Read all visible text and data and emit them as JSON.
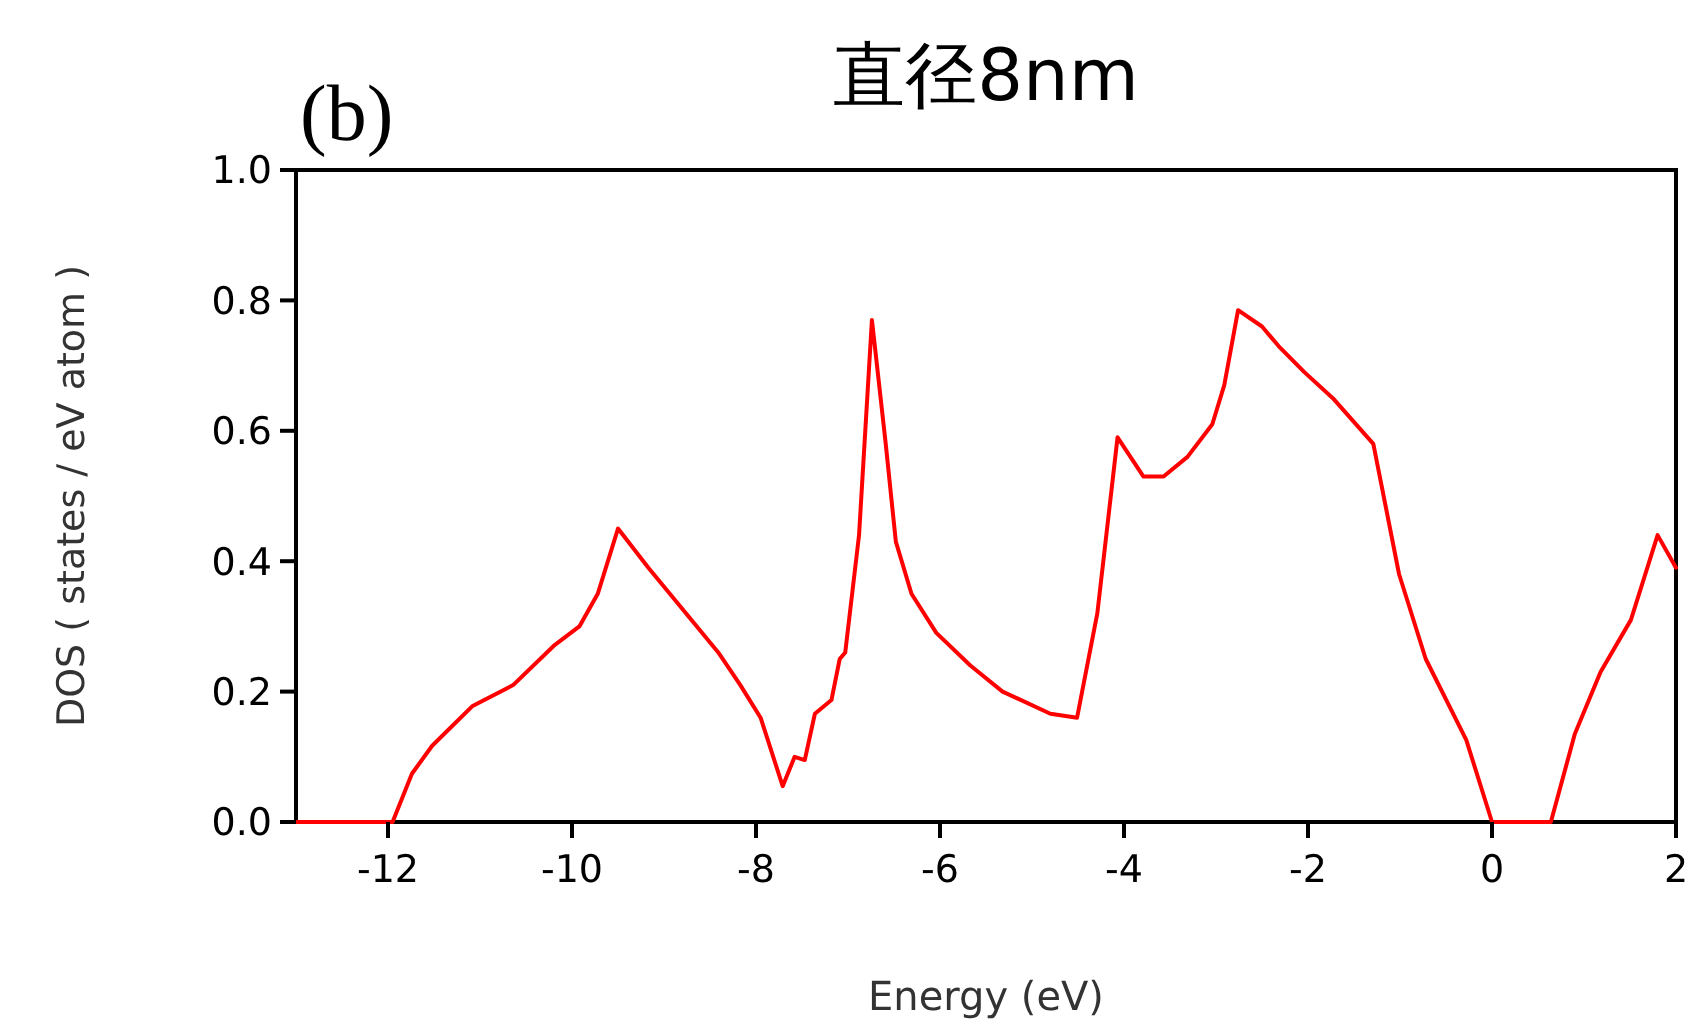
{
  "chart_data": {
    "type": "line",
    "title": "直径8nm",
    "xlabel": "Energy (eV)",
    "ylabel": "DOS ( states / eV atom )",
    "annotations": [
      "(b)"
    ],
    "xlim": [
      -13,
      2
    ],
    "xticks": [
      -12,
      -10,
      -8,
      -6,
      -4,
      -2,
      0,
      2
    ],
    "ylim": [
      0,
      1
    ],
    "yticks": [
      {
        "value": 0,
        "label": "0.0"
      },
      {
        "value": 0.2,
        "label": "0.2"
      },
      {
        "value": 0.4,
        "label": "0.4"
      },
      {
        "value": 0.6,
        "label": "0.6"
      },
      {
        "value": 0.8,
        "label": "0.8"
      },
      {
        "value": 1,
        "label": "1.0"
      }
    ],
    "grid": false,
    "marker": "none",
    "line_style": "solid",
    "series": [
      {
        "color": "#ff0000",
        "x": [
          -13,
          -11.95,
          -11.74,
          -11.52,
          -11.08,
          -10.64,
          -10.2,
          -9.92,
          -9.72,
          -9.5,
          -9.17,
          -8.82,
          -8.41,
          -8.17,
          -7.95,
          -7.71,
          -7.58,
          -7.47,
          -7.36,
          -7.18,
          -7.09,
          -7.03,
          -6.88,
          -6.74,
          -6.59,
          -6.48,
          -6.31,
          -6.04,
          -5.67,
          -5.32,
          -4.8,
          -4.51,
          -4.29,
          -4.07,
          -3.79,
          -3.57,
          -3.31,
          -3.04,
          -2.91,
          -2.76,
          -2.5,
          -2.32,
          -2.04,
          -1.73,
          -1.29,
          -1.01,
          -0.72,
          -0.28,
          0,
          0.64,
          0.9,
          1.18,
          1.51,
          1.8,
          2
        ],
        "values": [
          0,
          0,
          0.074,
          0.117,
          0.178,
          0.21,
          0.27,
          0.3,
          0.35,
          0.45,
          0.39,
          0.33,
          0.26,
          0.21,
          0.16,
          0.055,
          0.1,
          0.095,
          0.166,
          0.187,
          0.25,
          0.26,
          0.44,
          0.77,
          0.58,
          0.43,
          0.35,
          0.29,
          0.24,
          0.2,
          0.166,
          0.16,
          0.32,
          0.59,
          0.53,
          0.53,
          0.56,
          0.61,
          0.67,
          0.785,
          0.76,
          0.73,
          0.69,
          0.65,
          0.58,
          0.38,
          0.25,
          0.126,
          0,
          0,
          0.135,
          0.23,
          0.31,
          0.44,
          0.39
        ]
      }
    ]
  }
}
